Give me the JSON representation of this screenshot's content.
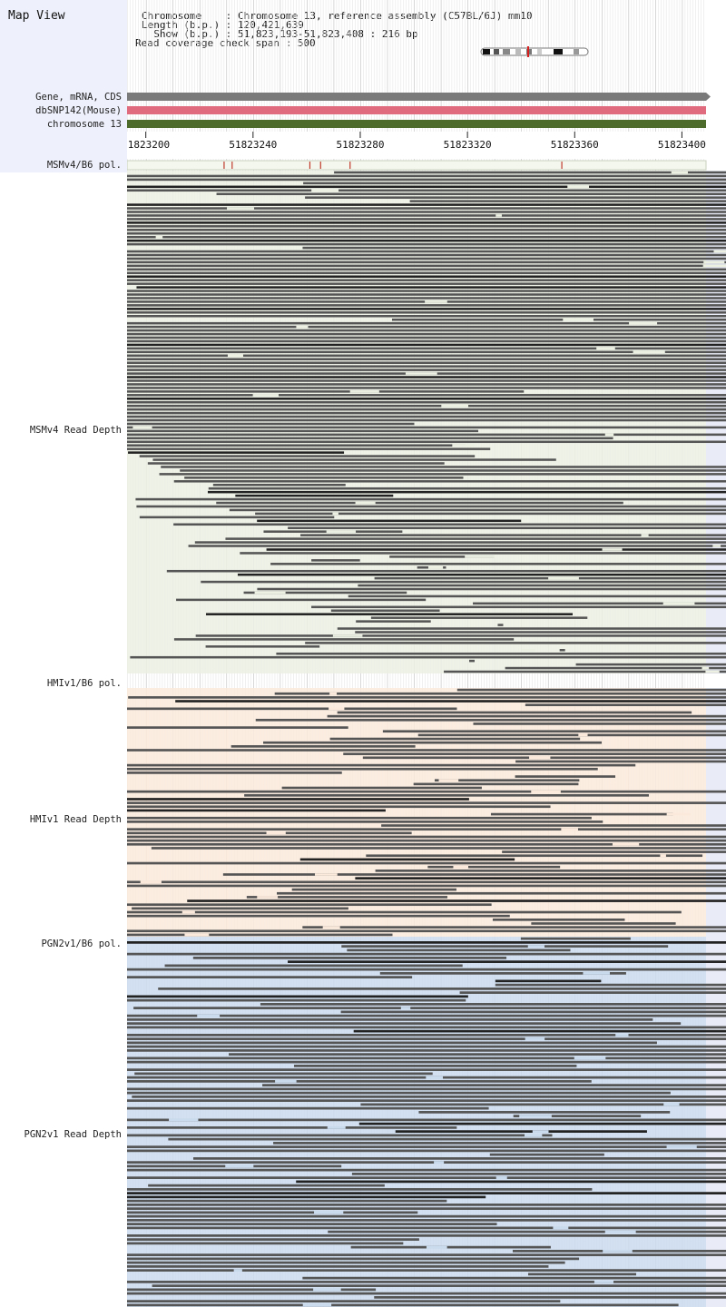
{
  "panel": {
    "title": "Map View"
  },
  "info": {
    "chromosome_line": "Chromosome    : Chromosome 13, reference assembly (C57BL/6J) mm10",
    "length_line": "Length (b.p.) : 120,421,639",
    "show_line": "  Show (b.p.) : 51,823,193-51,823,408 : 216 bp",
    "coverage_line": "Read coverage check span : 500"
  },
  "tracks": {
    "gene": "Gene, mRNA, CDS",
    "dbsnp": "dbSNP142(Mouse)",
    "chromosome": "chromosome 13"
  },
  "ruler": {
    "ticks": [
      "51823200",
      "51823240",
      "51823280",
      "51823320",
      "51823360",
      "51823400"
    ],
    "start": 51823193,
    "end": 51823408
  },
  "snp_positions": [
    51823229,
    51823232,
    51823261,
    51823265,
    51823276,
    51823355
  ],
  "samples": [
    {
      "pol_label": "MSMv4/B6 pol.",
      "depth_label": "MSMv4 Read Depth",
      "fill": "#ebf0e3",
      "reads": 140
    },
    {
      "pol_label": "HMIv1/B6 pol.",
      "depth_label": "HMIv1 Read Depth",
      "fill": "#fbeadc",
      "reads": 66
    },
    {
      "pol_label": "PGN2v1/B6 pol.",
      "depth_label": "PGN2v1 Read Depth",
      "fill": "#cadbee",
      "reads": 96
    }
  ],
  "colors": {
    "gene_bar": "#7a7a7a",
    "dbsnp_bar": "#e06a7e",
    "chromosome_bar": "#4d6b2a",
    "snp_mark": "#c0392b",
    "read": "#555555",
    "read_dark": "#222222",
    "grid": "#c8c8c8"
  }
}
